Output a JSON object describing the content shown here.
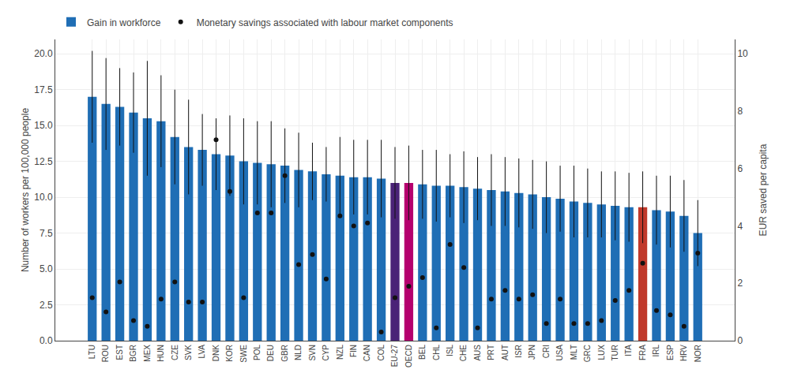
{
  "chart_data": {
    "type": "bar",
    "categories": [
      "LTU",
      "ROU",
      "EST",
      "BGR",
      "MEX",
      "HUN",
      "CZE",
      "SVK",
      "LVA",
      "DNK",
      "KOR",
      "SWE",
      "POL",
      "DEU",
      "GBR",
      "NLD",
      "SVN",
      "CYP",
      "NZL",
      "FIN",
      "CAN",
      "COL",
      "EU-27",
      "OECD",
      "BEL",
      "CHL",
      "ISL",
      "CHE",
      "AUS",
      "PRT",
      "AUT",
      "ISR",
      "JPN",
      "CRI",
      "USA",
      "MLT",
      "GRC",
      "LUX",
      "TUR",
      "ITA",
      "FRA",
      "IRL",
      "ESP",
      "HRV",
      "NOR"
    ],
    "series": [
      {
        "name": "Gain in workforce",
        "type": "bar",
        "colors": [
          "#1f6eb5",
          "#1f6eb5",
          "#1f6eb5",
          "#1f6eb5",
          "#1f6eb5",
          "#1f6eb5",
          "#1f6eb5",
          "#1f6eb5",
          "#1f6eb5",
          "#1f6eb5",
          "#1f6eb5",
          "#1f6eb5",
          "#1f6eb5",
          "#1f6eb5",
          "#1f6eb5",
          "#1f6eb5",
          "#1f6eb5",
          "#1f6eb5",
          "#1f6eb5",
          "#1f6eb5",
          "#1f6eb5",
          "#1f6eb5",
          "#4a2377",
          "#b5006e",
          "#1f6eb5",
          "#1f6eb5",
          "#1f6eb5",
          "#1f6eb5",
          "#1f6eb5",
          "#1f6eb5",
          "#1f6eb5",
          "#1f6eb5",
          "#1f6eb5",
          "#1f6eb5",
          "#1f6eb5",
          "#1f6eb5",
          "#1f6eb5",
          "#1f6eb5",
          "#1f6eb5",
          "#1f6eb5",
          "#c0392b",
          "#1f6eb5",
          "#1f6eb5",
          "#1f6eb5",
          "#1f6eb5"
        ],
        "values": [
          17.0,
          16.5,
          16.3,
          15.9,
          15.5,
          15.3,
          14.2,
          13.5,
          13.3,
          13.0,
          12.9,
          12.5,
          12.4,
          12.3,
          12.2,
          11.9,
          11.8,
          11.6,
          11.5,
          11.4,
          11.4,
          11.3,
          11.0,
          11.0,
          10.9,
          10.8,
          10.8,
          10.7,
          10.6,
          10.5,
          10.4,
          10.3,
          10.2,
          10.0,
          9.9,
          9.7,
          9.6,
          9.5,
          9.4,
          9.3,
          9.3,
          9.1,
          9.0,
          8.7,
          7.5
        ],
        "error_upper": [
          20.2,
          19.7,
          19.0,
          18.7,
          19.5,
          18.5,
          17.5,
          16.8,
          15.8,
          15.5,
          15.7,
          15.5,
          15.3,
          15.3,
          14.8,
          14.5,
          13.8,
          13.5,
          14.2,
          14.0,
          14.0,
          14.0,
          13.5,
          13.6,
          13.3,
          13.3,
          13.0,
          13.2,
          12.8,
          13.0,
          12.8,
          12.7,
          12.6,
          12.5,
          12.2,
          12.2,
          12.0,
          11.8,
          11.8,
          11.7,
          11.8,
          11.5,
          11.5,
          11.2,
          9.8
        ],
        "error_lower": [
          13.8,
          13.3,
          13.6,
          13.1,
          11.5,
          12.1,
          10.9,
          10.2,
          10.8,
          10.5,
          10.1,
          9.5,
          9.5,
          9.3,
          9.6,
          9.3,
          9.8,
          9.7,
          8.8,
          8.8,
          8.8,
          8.6,
          8.5,
          8.4,
          8.5,
          8.3,
          8.6,
          8.2,
          8.4,
          8.0,
          8.0,
          7.9,
          7.8,
          7.5,
          7.6,
          7.2,
          7.2,
          7.2,
          7.0,
          6.9,
          6.8,
          6.7,
          6.5,
          6.2,
          5.2
        ]
      },
      {
        "name": "Monetary savings associated with labour market components",
        "type": "scatter",
        "axis": "y2",
        "color": "#111111",
        "marker": "circle",
        "values": [
          1.5,
          1.0,
          2.05,
          0.7,
          0.5,
          1.45,
          2.05,
          1.35,
          1.35,
          7.0,
          5.2,
          1.5,
          4.45,
          4.45,
          5.75,
          2.65,
          3.0,
          2.15,
          4.35,
          4.0,
          4.1,
          0.3,
          1.5,
          1.9,
          2.2,
          0.45,
          3.35,
          2.55,
          0.45,
          1.45,
          1.75,
          1.45,
          1.6,
          0.6,
          1.45,
          0.6,
          0.6,
          0.7,
          1.4,
          1.75,
          2.7,
          1.05,
          0.9,
          0.5,
          3.05
        ]
      }
    ],
    "ylabel": "Number of workers per 100,000 people",
    "y2label": "EUR saved per capita",
    "ylim": [
      0,
      21
    ],
    "yticks": [
      {
        "value": 0.0,
        "label": "0.0"
      },
      2.5,
      {
        "value": 5.0,
        "label": "5.0"
      },
      7.5,
      {
        "value": 10.0,
        "label": "10.0"
      },
      12.5,
      {
        "value": 15.0,
        "label": "15.0"
      },
      17.5,
      {
        "value": 20.0,
        "label": "20.0"
      }
    ],
    "y2lim": [
      0,
      10.5
    ],
    "y2ticks": [
      0,
      2,
      4,
      6,
      8,
      10
    ],
    "grid": true,
    "legend": "top"
  }
}
